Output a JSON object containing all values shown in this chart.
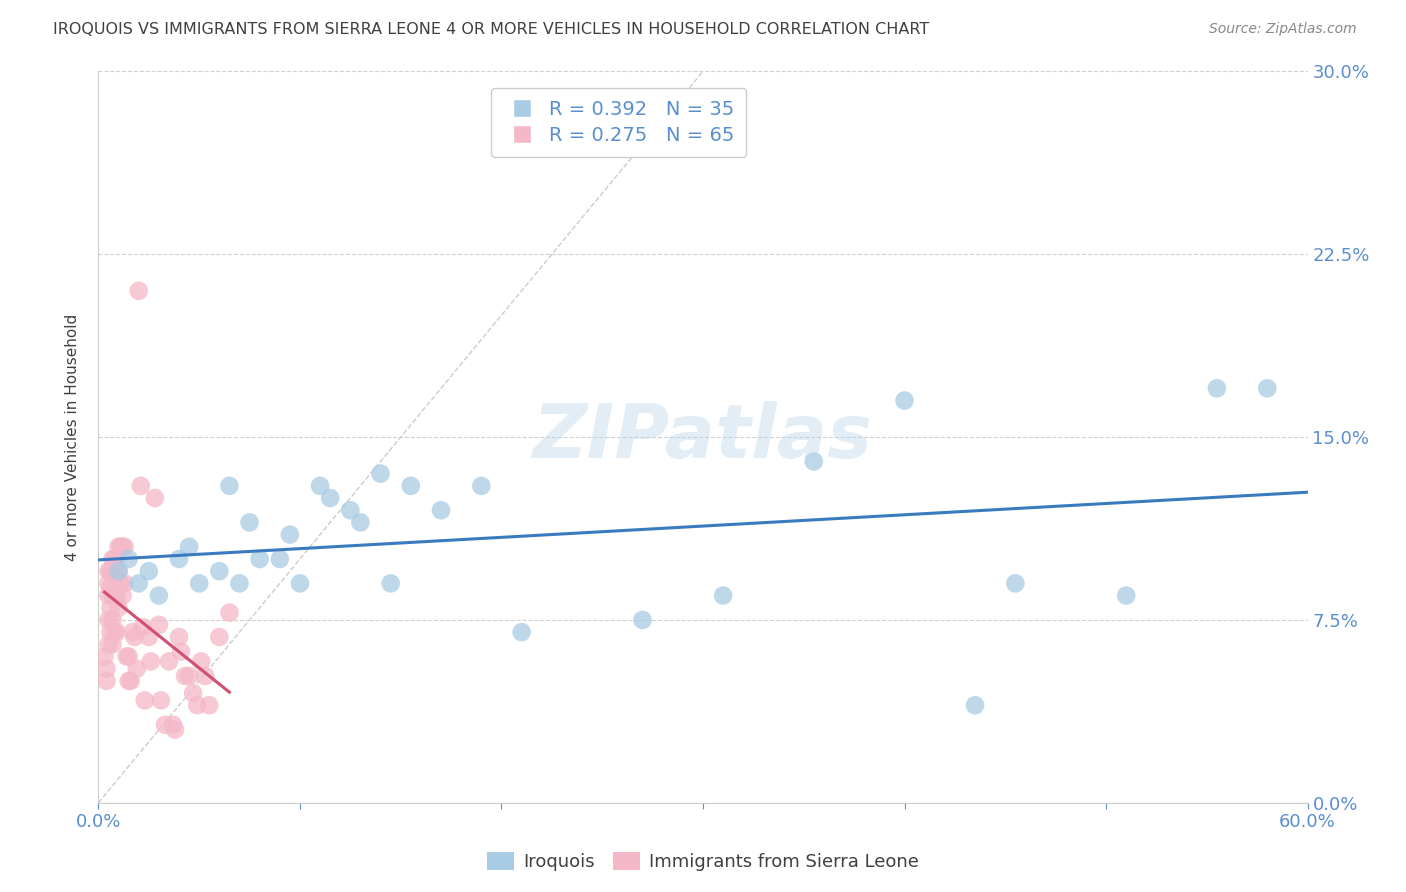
{
  "title": "IROQUOIS VS IMMIGRANTS FROM SIERRA LEONE 4 OR MORE VEHICLES IN HOUSEHOLD CORRELATION CHART",
  "source": "Source: ZipAtlas.com",
  "ylabel": "4 or more Vehicles in Household",
  "xlim": [
    0,
    0.6
  ],
  "ylim": [
    0,
    0.3
  ],
  "xticks": [
    0.0,
    0.1,
    0.2,
    0.3,
    0.4,
    0.5,
    0.6
  ],
  "yticks": [
    0.0,
    0.075,
    0.15,
    0.225,
    0.3
  ],
  "legend_r_blue": "R = 0.392",
  "legend_n_blue": "N = 35",
  "legend_r_pink": "R = 0.275",
  "legend_n_pink": "N = 65",
  "blue_color": "#a8cce4",
  "pink_color": "#f4b8c8",
  "blue_line_color": "#3a7bbf",
  "pink_line_color": "#d05070",
  "title_color": "#404040",
  "tick_color": "#5b8ecf",
  "watermark": "ZIPatlas",
  "iroquois_x": [
    0.01,
    0.015,
    0.02,
    0.025,
    0.03,
    0.04,
    0.045,
    0.05,
    0.06,
    0.065,
    0.07,
    0.075,
    0.08,
    0.09,
    0.095,
    0.1,
    0.11,
    0.115,
    0.125,
    0.13,
    0.14,
    0.145,
    0.155,
    0.17,
    0.19,
    0.21,
    0.27,
    0.31,
    0.355,
    0.4,
    0.435,
    0.455,
    0.51,
    0.555,
    0.58
  ],
  "iroquois_y": [
    0.095,
    0.1,
    0.09,
    0.095,
    0.085,
    0.1,
    0.105,
    0.09,
    0.095,
    0.13,
    0.09,
    0.115,
    0.1,
    0.1,
    0.11,
    0.09,
    0.13,
    0.125,
    0.12,
    0.115,
    0.135,
    0.09,
    0.13,
    0.12,
    0.13,
    0.07,
    0.075,
    0.085,
    0.14,
    0.165,
    0.04,
    0.09,
    0.085,
    0.17,
    0.17
  ],
  "sierra_leone_x": [
    0.003,
    0.004,
    0.004,
    0.005,
    0.005,
    0.005,
    0.005,
    0.005,
    0.006,
    0.006,
    0.006,
    0.006,
    0.007,
    0.007,
    0.007,
    0.007,
    0.007,
    0.008,
    0.008,
    0.008,
    0.008,
    0.009,
    0.009,
    0.009,
    0.009,
    0.01,
    0.01,
    0.01,
    0.011,
    0.011,
    0.012,
    0.012,
    0.013,
    0.013,
    0.014,
    0.015,
    0.015,
    0.016,
    0.017,
    0.018,
    0.019,
    0.02,
    0.021,
    0.022,
    0.023,
    0.025,
    0.026,
    0.028,
    0.03,
    0.031,
    0.033,
    0.035,
    0.037,
    0.038,
    0.04,
    0.041,
    0.043,
    0.045,
    0.047,
    0.049,
    0.051,
    0.053,
    0.055,
    0.06,
    0.065
  ],
  "sierra_leone_y": [
    0.06,
    0.055,
    0.05,
    0.095,
    0.09,
    0.085,
    0.075,
    0.065,
    0.095,
    0.088,
    0.08,
    0.07,
    0.1,
    0.095,
    0.085,
    0.075,
    0.065,
    0.1,
    0.095,
    0.085,
    0.07,
    0.1,
    0.095,
    0.085,
    0.07,
    0.105,
    0.095,
    0.08,
    0.105,
    0.09,
    0.105,
    0.085,
    0.105,
    0.09,
    0.06,
    0.06,
    0.05,
    0.05,
    0.07,
    0.068,
    0.055,
    0.21,
    0.13,
    0.072,
    0.042,
    0.068,
    0.058,
    0.125,
    0.073,
    0.042,
    0.032,
    0.058,
    0.032,
    0.03,
    0.068,
    0.062,
    0.052,
    0.052,
    0.045,
    0.04,
    0.058,
    0.052,
    0.04,
    0.068,
    0.078
  ],
  "background_color": "#ffffff",
  "grid_color": "#d0d0d0"
}
